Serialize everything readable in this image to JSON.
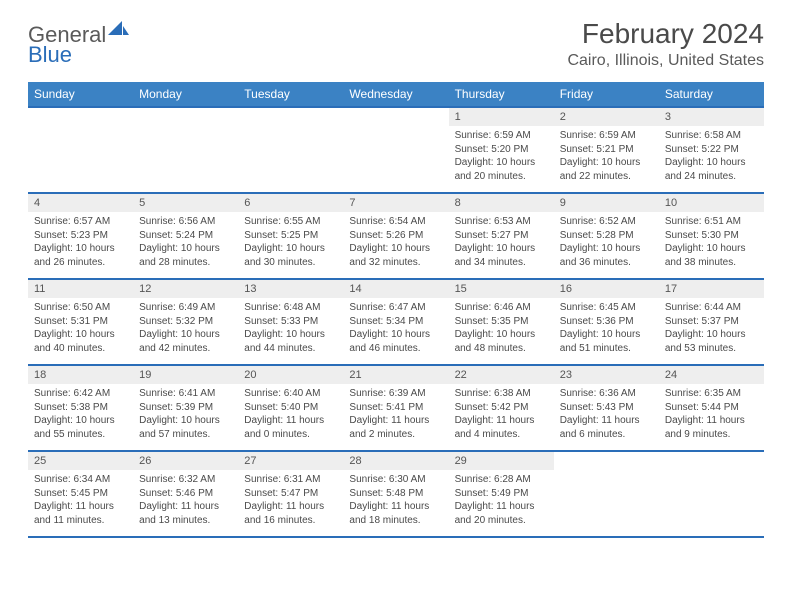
{
  "brand": {
    "part1": "General",
    "part2": "Blue"
  },
  "title": "February 2024",
  "location": "Cairo, Illinois, United States",
  "colors": {
    "header_bg": "#3b82c4",
    "header_border": "#2a6db8",
    "daynum_bg": "#eeeeee",
    "text": "#4a4a4a",
    "brand_gray": "#5a5a5a",
    "brand_blue": "#2a6db8"
  },
  "weekdays": [
    "Sunday",
    "Monday",
    "Tuesday",
    "Wednesday",
    "Thursday",
    "Friday",
    "Saturday"
  ],
  "weeks": [
    [
      {
        "n": "",
        "sr": "",
        "ss": "",
        "dl": ""
      },
      {
        "n": "",
        "sr": "",
        "ss": "",
        "dl": ""
      },
      {
        "n": "",
        "sr": "",
        "ss": "",
        "dl": ""
      },
      {
        "n": "",
        "sr": "",
        "ss": "",
        "dl": ""
      },
      {
        "n": "1",
        "sr": "Sunrise: 6:59 AM",
        "ss": "Sunset: 5:20 PM",
        "dl": "Daylight: 10 hours and 20 minutes."
      },
      {
        "n": "2",
        "sr": "Sunrise: 6:59 AM",
        "ss": "Sunset: 5:21 PM",
        "dl": "Daylight: 10 hours and 22 minutes."
      },
      {
        "n": "3",
        "sr": "Sunrise: 6:58 AM",
        "ss": "Sunset: 5:22 PM",
        "dl": "Daylight: 10 hours and 24 minutes."
      }
    ],
    [
      {
        "n": "4",
        "sr": "Sunrise: 6:57 AM",
        "ss": "Sunset: 5:23 PM",
        "dl": "Daylight: 10 hours and 26 minutes."
      },
      {
        "n": "5",
        "sr": "Sunrise: 6:56 AM",
        "ss": "Sunset: 5:24 PM",
        "dl": "Daylight: 10 hours and 28 minutes."
      },
      {
        "n": "6",
        "sr": "Sunrise: 6:55 AM",
        "ss": "Sunset: 5:25 PM",
        "dl": "Daylight: 10 hours and 30 minutes."
      },
      {
        "n": "7",
        "sr": "Sunrise: 6:54 AM",
        "ss": "Sunset: 5:26 PM",
        "dl": "Daylight: 10 hours and 32 minutes."
      },
      {
        "n": "8",
        "sr": "Sunrise: 6:53 AM",
        "ss": "Sunset: 5:27 PM",
        "dl": "Daylight: 10 hours and 34 minutes."
      },
      {
        "n": "9",
        "sr": "Sunrise: 6:52 AM",
        "ss": "Sunset: 5:28 PM",
        "dl": "Daylight: 10 hours and 36 minutes."
      },
      {
        "n": "10",
        "sr": "Sunrise: 6:51 AM",
        "ss": "Sunset: 5:30 PM",
        "dl": "Daylight: 10 hours and 38 minutes."
      }
    ],
    [
      {
        "n": "11",
        "sr": "Sunrise: 6:50 AM",
        "ss": "Sunset: 5:31 PM",
        "dl": "Daylight: 10 hours and 40 minutes."
      },
      {
        "n": "12",
        "sr": "Sunrise: 6:49 AM",
        "ss": "Sunset: 5:32 PM",
        "dl": "Daylight: 10 hours and 42 minutes."
      },
      {
        "n": "13",
        "sr": "Sunrise: 6:48 AM",
        "ss": "Sunset: 5:33 PM",
        "dl": "Daylight: 10 hours and 44 minutes."
      },
      {
        "n": "14",
        "sr": "Sunrise: 6:47 AM",
        "ss": "Sunset: 5:34 PM",
        "dl": "Daylight: 10 hours and 46 minutes."
      },
      {
        "n": "15",
        "sr": "Sunrise: 6:46 AM",
        "ss": "Sunset: 5:35 PM",
        "dl": "Daylight: 10 hours and 48 minutes."
      },
      {
        "n": "16",
        "sr": "Sunrise: 6:45 AM",
        "ss": "Sunset: 5:36 PM",
        "dl": "Daylight: 10 hours and 51 minutes."
      },
      {
        "n": "17",
        "sr": "Sunrise: 6:44 AM",
        "ss": "Sunset: 5:37 PM",
        "dl": "Daylight: 10 hours and 53 minutes."
      }
    ],
    [
      {
        "n": "18",
        "sr": "Sunrise: 6:42 AM",
        "ss": "Sunset: 5:38 PM",
        "dl": "Daylight: 10 hours and 55 minutes."
      },
      {
        "n": "19",
        "sr": "Sunrise: 6:41 AM",
        "ss": "Sunset: 5:39 PM",
        "dl": "Daylight: 10 hours and 57 minutes."
      },
      {
        "n": "20",
        "sr": "Sunrise: 6:40 AM",
        "ss": "Sunset: 5:40 PM",
        "dl": "Daylight: 11 hours and 0 minutes."
      },
      {
        "n": "21",
        "sr": "Sunrise: 6:39 AM",
        "ss": "Sunset: 5:41 PM",
        "dl": "Daylight: 11 hours and 2 minutes."
      },
      {
        "n": "22",
        "sr": "Sunrise: 6:38 AM",
        "ss": "Sunset: 5:42 PM",
        "dl": "Daylight: 11 hours and 4 minutes."
      },
      {
        "n": "23",
        "sr": "Sunrise: 6:36 AM",
        "ss": "Sunset: 5:43 PM",
        "dl": "Daylight: 11 hours and 6 minutes."
      },
      {
        "n": "24",
        "sr": "Sunrise: 6:35 AM",
        "ss": "Sunset: 5:44 PM",
        "dl": "Daylight: 11 hours and 9 minutes."
      }
    ],
    [
      {
        "n": "25",
        "sr": "Sunrise: 6:34 AM",
        "ss": "Sunset: 5:45 PM",
        "dl": "Daylight: 11 hours and 11 minutes."
      },
      {
        "n": "26",
        "sr": "Sunrise: 6:32 AM",
        "ss": "Sunset: 5:46 PM",
        "dl": "Daylight: 11 hours and 13 minutes."
      },
      {
        "n": "27",
        "sr": "Sunrise: 6:31 AM",
        "ss": "Sunset: 5:47 PM",
        "dl": "Daylight: 11 hours and 16 minutes."
      },
      {
        "n": "28",
        "sr": "Sunrise: 6:30 AM",
        "ss": "Sunset: 5:48 PM",
        "dl": "Daylight: 11 hours and 18 minutes."
      },
      {
        "n": "29",
        "sr": "Sunrise: 6:28 AM",
        "ss": "Sunset: 5:49 PM",
        "dl": "Daylight: 11 hours and 20 minutes."
      },
      {
        "n": "",
        "sr": "",
        "ss": "",
        "dl": ""
      },
      {
        "n": "",
        "sr": "",
        "ss": "",
        "dl": ""
      }
    ]
  ]
}
